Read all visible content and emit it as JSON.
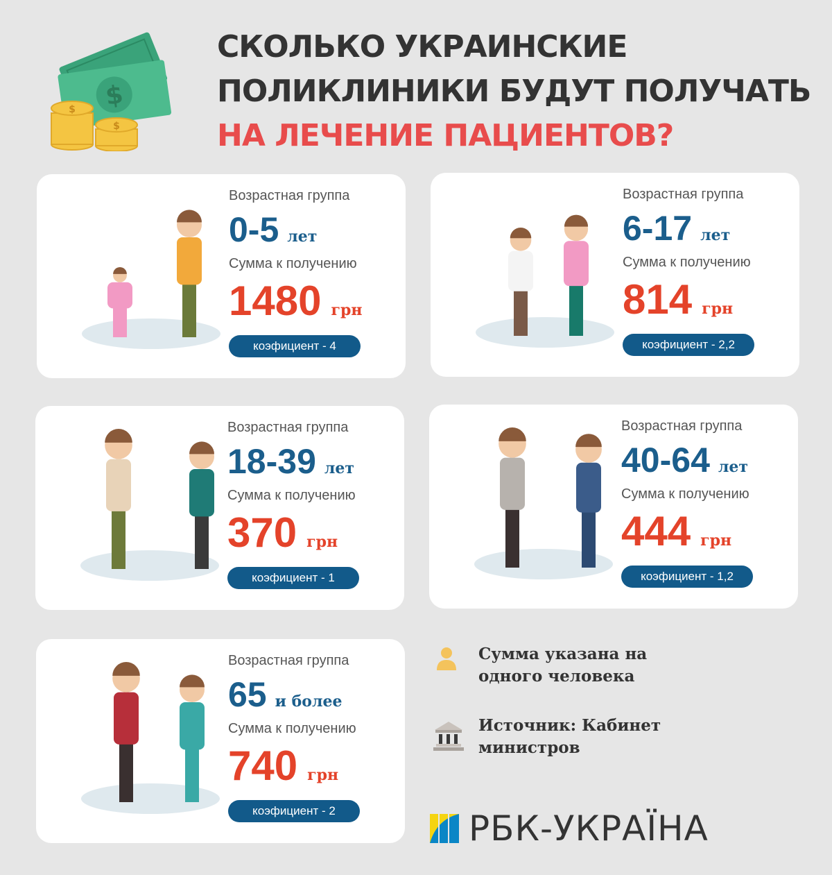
{
  "header": {
    "title_line1": "СКОЛЬКО УКРАИНСКИЕ",
    "title_line2": "ПОЛИКЛИНИКИ БУДУТ ПОЛУЧАТЬ",
    "title_line3": "НА ЛЕЧЕНИЕ ПАЦИЕНТОВ?",
    "icon": "money-coins-icon"
  },
  "cards": [
    {
      "group_label": "Возрастная группа",
      "age": "0-5",
      "age_unit": "лет",
      "sum_label": "Сумма к получению",
      "amount": "1480",
      "currency": "грн",
      "coefficient": "коэфициент - 4"
    },
    {
      "group_label": "Возрастная группа",
      "age": "6-17",
      "age_unit": "лет",
      "sum_label": "Сумма к получению",
      "amount": "814",
      "currency": "грн",
      "coefficient": "коэфициент - 2,2"
    },
    {
      "group_label": "Возрастная группа",
      "age": "18-39",
      "age_unit": "лет",
      "sum_label": "Сумма к получению",
      "amount": "370",
      "currency": "грн",
      "coefficient": "коэфициент - 1"
    },
    {
      "group_label": "Возрастная группа",
      "age": "40-64",
      "age_unit": "лет",
      "sum_label": "Сумма к получению",
      "amount": "444",
      "currency": "грн",
      "coefficient": "коэфициент - 1,2"
    },
    {
      "group_label": "Возрастная группа",
      "age": "65",
      "age_unit": "и более",
      "sum_label": "Сумма к получению",
      "amount": "740",
      "currency": "грн",
      "coefficient": "коэфициент - 2"
    }
  ],
  "notes": {
    "per_person": "Сумма указана на одного человека",
    "source": "Источник: Кабинет министров"
  },
  "logo": {
    "text": "РБК-УКРАЇНА"
  },
  "colors": {
    "blue": "#1b5e8c",
    "red": "#e4432a",
    "pill": "#125a8a",
    "title_red": "#e84c4c"
  }
}
